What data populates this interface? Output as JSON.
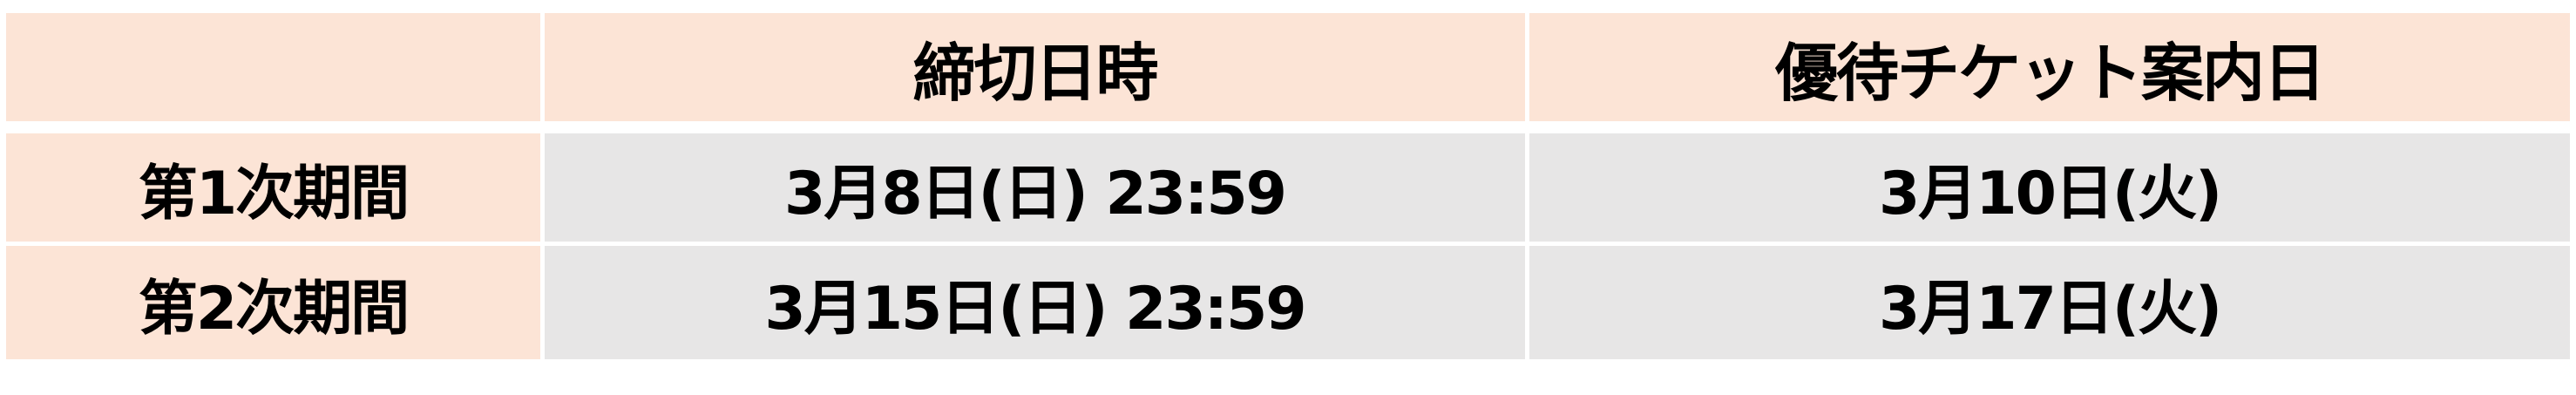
{
  "table": {
    "headers": [
      "",
      "締切日時",
      "優待チケット案内日"
    ],
    "rows": [
      {
        "label": "第1次期間",
        "deadline": "3月8日(日) 23:59",
        "notice_date": "3月10日(火)"
      },
      {
        "label": "第2次期間",
        "deadline": "3月15日(日) 23:59",
        "notice_date": "3月17日(火)"
      }
    ],
    "colors": {
      "header_bg": "#fce4d6",
      "body_bg": "#e7e6e6"
    }
  }
}
